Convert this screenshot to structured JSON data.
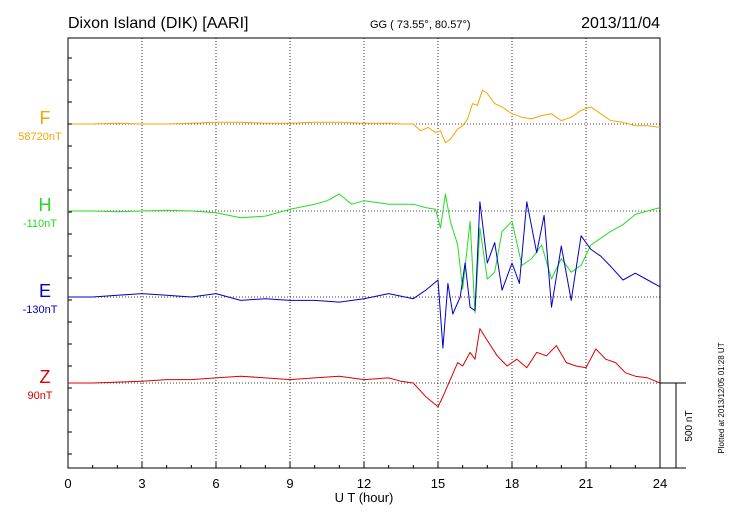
{
  "header": {
    "station": "Dixon Island (DIK)  [AARI]",
    "coords": "GG ( 73.55°,  80.57°)",
    "date": "2013/11/04"
  },
  "footer": {
    "plotted": "Plotted at 2013/12/05 01:28 UT"
  },
  "chart_data": {
    "type": "line",
    "xlabel": "U T (hour)",
    "xlim": [
      0,
      24
    ],
    "xticks": [
      0,
      3,
      6,
      9,
      12,
      15,
      18,
      21,
      24
    ],
    "scale_bar": {
      "label": "500 nT",
      "value_nT": 500
    },
    "series": [
      {
        "name": "F",
        "baseline": "58720nT",
        "color": "#f5a500",
        "x": [
          0,
          1,
          2,
          3,
          4,
          5,
          6,
          7,
          8,
          9,
          10,
          11,
          12,
          13,
          13.5,
          14,
          14.3,
          14.6,
          14.9,
          15.1,
          15.3,
          15.5,
          15.8,
          16.0,
          16.2,
          16.4,
          16.6,
          16.8,
          17.0,
          17.3,
          17.6,
          18.0,
          18.4,
          18.8,
          19.2,
          19.6,
          20.0,
          20.4,
          20.8,
          21.2,
          21.6,
          22.0,
          22.5,
          23.0,
          23.5,
          24.0
        ],
        "y": [
          0,
          0,
          5,
          0,
          0,
          5,
          10,
          10,
          5,
          5,
          10,
          10,
          5,
          5,
          0,
          0,
          -40,
          -20,
          -50,
          -40,
          -110,
          -90,
          -30,
          -10,
          30,
          120,
          110,
          200,
          180,
          120,
          100,
          60,
          40,
          30,
          50,
          60,
          20,
          40,
          80,
          100,
          60,
          20,
          10,
          -10,
          -10,
          -20
        ]
      },
      {
        "name": "H",
        "baseline": "-110nT",
        "color": "#22dd22",
        "x": [
          0,
          1,
          2,
          3,
          4,
          5,
          6,
          7,
          8,
          9,
          10,
          10.5,
          11,
          11.5,
          12,
          13,
          14,
          14.5,
          14.9,
          15.1,
          15.3,
          15.5,
          15.8,
          16.0,
          16.3,
          16.5,
          16.7,
          17.0,
          17.3,
          17.6,
          18.0,
          18.4,
          18.8,
          19.2,
          19.6,
          20.0,
          20.4,
          20.8,
          21.2,
          21.6,
          22.0,
          22.5,
          23.0,
          23.5,
          24.0
        ],
        "y": [
          0,
          0,
          -5,
          0,
          5,
          0,
          -10,
          -40,
          -30,
          10,
          40,
          60,
          100,
          40,
          60,
          40,
          40,
          20,
          10,
          -100,
          100,
          -60,
          -200,
          -460,
          -60,
          -600,
          -100,
          -400,
          -360,
          -120,
          -60,
          -320,
          -280,
          -200,
          -400,
          -280,
          -360,
          -320,
          -200,
          -160,
          -120,
          -80,
          -20,
          0,
          20
        ]
      },
      {
        "name": "E",
        "baseline": "-130nT",
        "color": "#0000cc",
        "x": [
          0,
          1,
          2,
          3,
          4,
          5,
          6,
          7,
          8,
          9,
          10,
          11,
          12,
          13,
          14,
          14.5,
          15.0,
          15.2,
          15.4,
          15.6,
          15.9,
          16.1,
          16.3,
          16.5,
          16.7,
          17.0,
          17.3,
          17.6,
          18.0,
          18.3,
          18.6,
          19.0,
          19.3,
          19.6,
          20.0,
          20.4,
          20.8,
          21.2,
          21.6,
          22.0,
          22.5,
          23.0,
          23.5,
          24.0
        ],
        "y": [
          0,
          0,
          10,
          20,
          10,
          0,
          20,
          -20,
          -10,
          -20,
          -20,
          -30,
          -10,
          20,
          -10,
          40,
          100,
          -300,
          80,
          -100,
          0,
          200,
          -60,
          -80,
          560,
          200,
          320,
          40,
          200,
          80,
          560,
          260,
          480,
          -60,
          300,
          -20,
          360,
          280,
          240,
          180,
          100,
          140,
          100,
          60
        ]
      },
      {
        "name": "Z",
        "baseline": "90nT",
        "color": "#dd0000",
        "x": [
          0,
          1,
          2,
          3,
          4,
          5,
          6,
          7,
          8,
          9,
          10,
          11,
          12,
          13,
          13.5,
          14,
          14.5,
          15.0,
          15.2,
          15.5,
          15.8,
          16.0,
          16.3,
          16.5,
          16.7,
          17.0,
          17.4,
          17.8,
          18.2,
          18.6,
          19.0,
          19.4,
          19.8,
          20.2,
          20.6,
          21.0,
          21.4,
          21.8,
          22.2,
          22.6,
          23.0,
          23.5,
          24.0
        ],
        "y": [
          0,
          0,
          5,
          10,
          20,
          20,
          30,
          40,
          30,
          20,
          30,
          40,
          20,
          30,
          10,
          0,
          -80,
          -140,
          -80,
          20,
          120,
          100,
          180,
          140,
          320,
          250,
          160,
          100,
          140,
          90,
          180,
          160,
          220,
          120,
          100,
          90,
          200,
          140,
          120,
          60,
          40,
          30,
          0
        ]
      }
    ]
  }
}
